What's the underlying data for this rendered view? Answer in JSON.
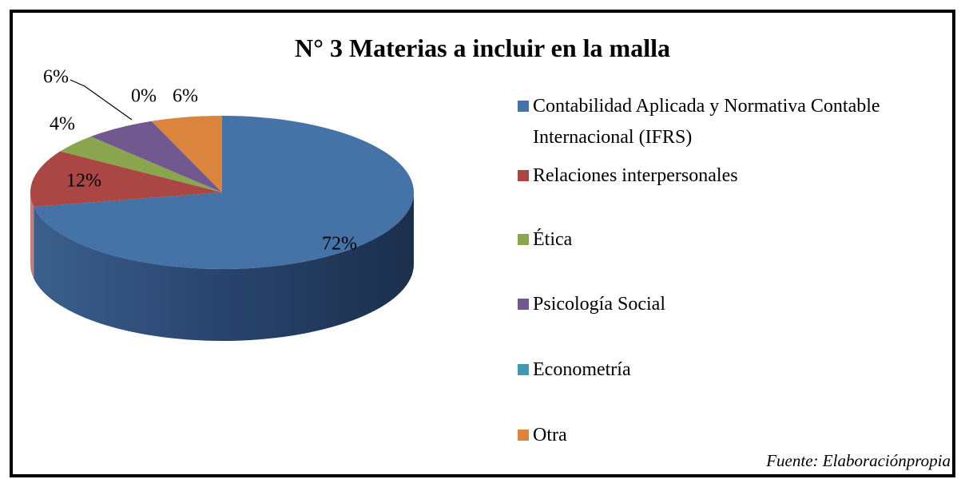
{
  "chart_data": {
    "type": "pie",
    "title": "N° 3 Materias a incluir  en la malla",
    "categories": [
      "Contabilidad Aplicada y Normativa Contable Internacional (IFRS)",
      "Relaciones interpersonales",
      "Ética",
      "Psicología Social",
      "Econometría",
      "Otra"
    ],
    "values": [
      72,
      12,
      4,
      6,
      0,
      6
    ],
    "value_labels": [
      "72%",
      "12%",
      "4%",
      "6%",
      "0%",
      "6%"
    ],
    "colors": [
      "#4572a7",
      "#aa4643",
      "#89a54e",
      "#71588f",
      "#4198af",
      "#db843d"
    ],
    "legend": "right",
    "source": "Fuente: Elaboraciónpropia"
  }
}
